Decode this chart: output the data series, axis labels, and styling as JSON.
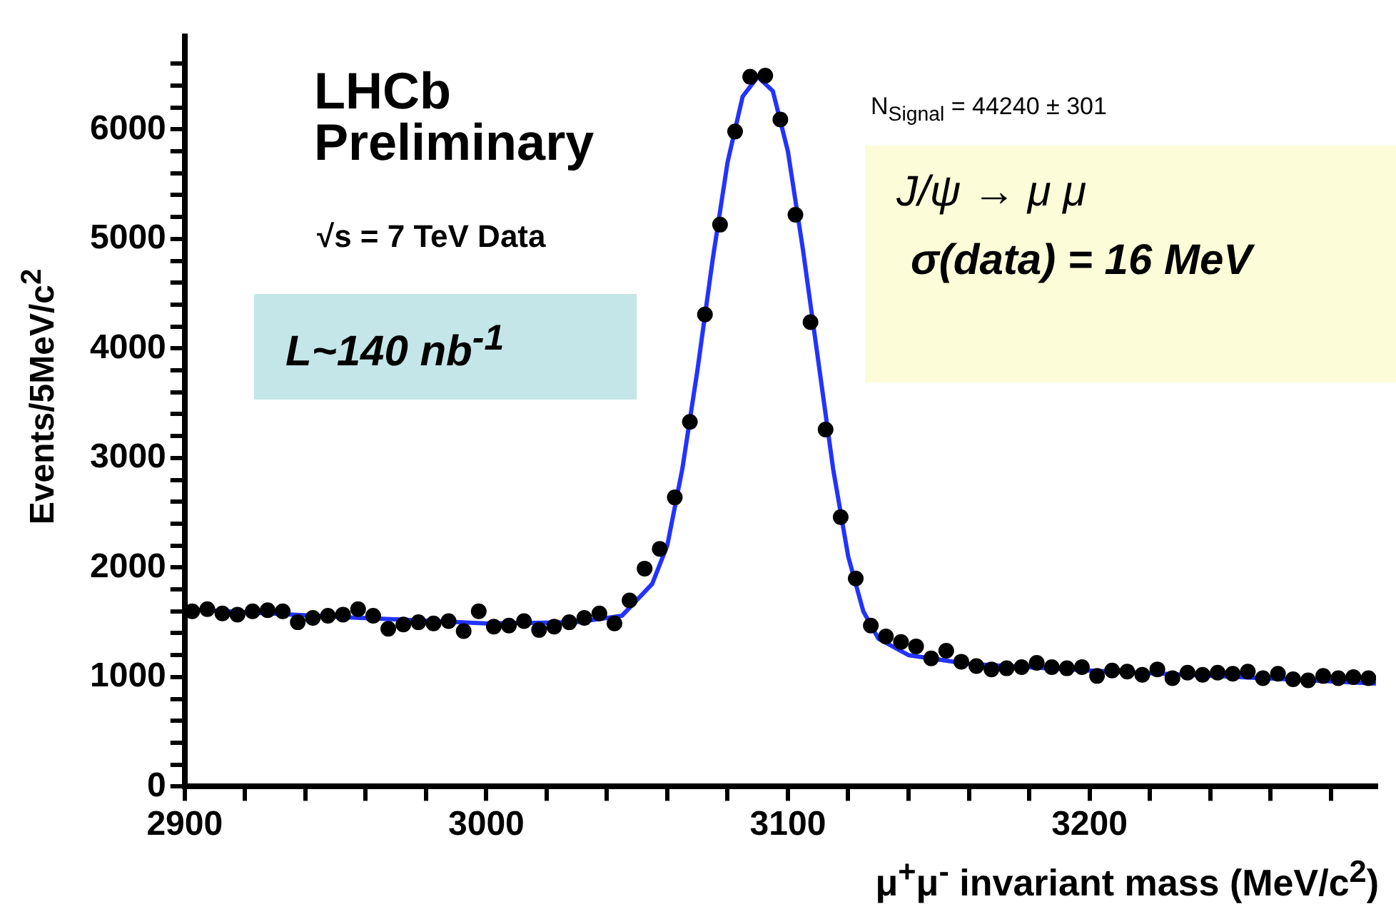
{
  "chart_data": {
    "type": "scatter",
    "xlabel": "μ$^{+}$μ$^{-}$ invariant mass (MeV/c$^{2}$)",
    "ylabel": "Events/5MeV/c$^{2}$",
    "xlim": [
      2900,
      3295
    ],
    "xticks": [
      2900,
      {
        "value": 2920,
        "label": null
      },
      {
        "value": 2940,
        "label": null
      },
      {
        "value": 2960,
        "label": null
      },
      {
        "value": 2980,
        "label": null
      },
      3000,
      {
        "value": 3020,
        "label": null
      },
      {
        "value": 3040,
        "label": null
      },
      {
        "value": 3060,
        "label": null
      },
      {
        "value": 3080,
        "label": null
      },
      3100,
      {
        "value": 3120,
        "label": null
      },
      {
        "value": 3140,
        "label": null
      },
      {
        "value": 3160,
        "label": null
      },
      {
        "value": 3180,
        "label": null
      },
      3200,
      {
        "value": 3220,
        "label": null
      },
      {
        "value": 3240,
        "label": null
      },
      {
        "value": 3260,
        "label": null
      },
      {
        "value": 3280,
        "label": null
      }
    ],
    "ylim": [
      0,
      6850
    ],
    "yticks": [
      0,
      {
        "value": 200,
        "label": null
      },
      {
        "value": 400,
        "label": null
      },
      {
        "value": 600,
        "label": null
      },
      {
        "value": 800,
        "label": null
      },
      1000,
      {
        "value": 1200,
        "label": null
      },
      {
        "value": 1400,
        "label": null
      },
      {
        "value": 1600,
        "label": null
      },
      {
        "value": 1800,
        "label": null
      },
      2000,
      {
        "value": 2200,
        "label": null
      },
      {
        "value": 2400,
        "label": null
      },
      {
        "value": 2600,
        "label": null
      },
      {
        "value": 2800,
        "label": null
      },
      3000,
      {
        "value": 3200,
        "label": null
      },
      {
        "value": 3400,
        "label": null
      },
      {
        "value": 3600,
        "label": null
      },
      {
        "value": 3800,
        "label": null
      },
      4000,
      {
        "value": 4200,
        "label": null
      },
      {
        "value": 4400,
        "label": null
      },
      {
        "value": 4600,
        "label": null
      },
      {
        "value": 4800,
        "label": null
      },
      5000,
      {
        "value": 5200,
        "label": null
      },
      {
        "value": 5400,
        "label": null
      },
      {
        "value": 5600,
        "label": null
      },
      {
        "value": 5800,
        "label": null
      },
      6000,
      {
        "value": 6200,
        "label": null
      },
      {
        "value": 6400,
        "label": null
      },
      {
        "value": 6600,
        "label": null
      }
    ],
    "grid": false,
    "legend": false,
    "series": [
      {
        "type": "scatter",
        "color": "#000000",
        "marker": "circle",
        "x": [
          2902.5,
          2907.5,
          2912.5,
          2917.5,
          2922.5,
          2927.5,
          2932.5,
          2937.5,
          2942.5,
          2947.5,
          2952.5,
          2957.5,
          2962.5,
          2967.5,
          2972.5,
          2977.5,
          2982.5,
          2987.5,
          2992.5,
          2997.5,
          3002.5,
          3007.5,
          3012.5,
          3017.5,
          3022.5,
          3027.5,
          3032.5,
          3037.5,
          3042.5,
          3047.5,
          3052.5,
          3057.5,
          3062.5,
          3067.5,
          3072.5,
          3077.5,
          3082.5,
          3087.5,
          3092.5,
          3097.5,
          3102.5,
          3107.5,
          3112.5,
          3117.5,
          3122.5,
          3127.5,
          3132.5,
          3137.5,
          3142.5,
          3147.5,
          3152.5,
          3157.5,
          3162.5,
          3167.5,
          3172.5,
          3177.5,
          3182.5,
          3187.5,
          3192.5,
          3197.5,
          3202.5,
          3207.5,
          3212.5,
          3217.5,
          3222.5,
          3227.5,
          3232.5,
          3237.5,
          3242.5,
          3247.5,
          3252.5,
          3257.5,
          3262.5,
          3267.5,
          3272.5,
          3277.5,
          3282.5,
          3287.5,
          3292.5
        ],
        "values": [
          1600,
          1620,
          1580,
          1570,
          1600,
          1610,
          1600,
          1500,
          1540,
          1560,
          1570,
          1620,
          1560,
          1440,
          1480,
          1500,
          1490,
          1510,
          1420,
          1600,
          1460,
          1470,
          1510,
          1430,
          1460,
          1500,
          1540,
          1580,
          1490,
          1700,
          1990,
          2170,
          2640,
          3330,
          4310,
          5130,
          5980,
          6480,
          6490,
          6090,
          5220,
          4240,
          3260,
          2460,
          1900,
          1470,
          1370,
          1320,
          1280,
          1170,
          1240,
          1140,
          1100,
          1070,
          1080,
          1090,
          1130,
          1090,
          1080,
          1090,
          1010,
          1060,
          1050,
          1020,
          1070,
          990,
          1040,
          1020,
          1040,
          1030,
          1050,
          990,
          1030,
          980,
          970,
          1010,
          990,
          1000,
          990
        ]
      },
      {
        "type": "line",
        "color": "#2233ff",
        "marker": "none",
        "x": [
          2900,
          2950,
          3000,
          3030,
          3045,
          3055,
          3060,
          3065,
          3070,
          3075,
          3080,
          3085,
          3090,
          3095,
          3100,
          3105,
          3110,
          3115,
          3120,
          3125,
          3130,
          3140,
          3160,
          3200,
          3250,
          3295
        ],
        "values": [
          1620,
          1550,
          1490,
          1500,
          1560,
          1850,
          2200,
          2900,
          3800,
          4800,
          5700,
          6300,
          6480,
          6350,
          5800,
          4900,
          3900,
          2900,
          2100,
          1600,
          1350,
          1200,
          1120,
          1060,
          1000,
          940
        ]
      }
    ],
    "annotations": [
      "LHCb",
      "Preliminary",
      "√s = 7 TeV Data",
      "L~140 nb$^{-1}$",
      "N$_{Signal}$ = 44240 ± 301",
      "J/ψ → μ μ",
      "σ(data) = 16 MeV"
    ]
  }
}
